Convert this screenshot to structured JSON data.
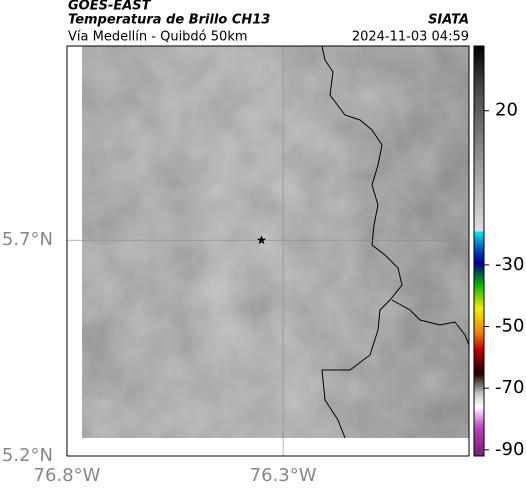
{
  "header": {
    "title": "GOES-EAST",
    "subtitle": "Temperatura de Brillo CH13",
    "source": "SIATA",
    "region": "Vía Medellín - Quibdó 50km",
    "timestamp": "2024-11-03 04:59"
  },
  "map": {
    "xlim": [
      -76.8,
      -75.87
    ],
    "ylim": [
      5.2,
      6.15
    ],
    "xticks": [
      {
        "value": -76.8,
        "label": "76.8°W"
      },
      {
        "value": -76.3,
        "label": "76.3°W"
      }
    ],
    "yticks": [
      {
        "value": 5.2,
        "label": "5.2°N"
      },
      {
        "value": 5.7,
        "label": "5.7°N"
      }
    ],
    "grid": true,
    "marker": {
      "lon": -76.35,
      "lat": 5.7
    }
  },
  "colorbar": {
    "lim": [
      41,
      -92
    ],
    "ticks": [
      20,
      -30,
      -50,
      -70,
      -90
    ]
  }
}
